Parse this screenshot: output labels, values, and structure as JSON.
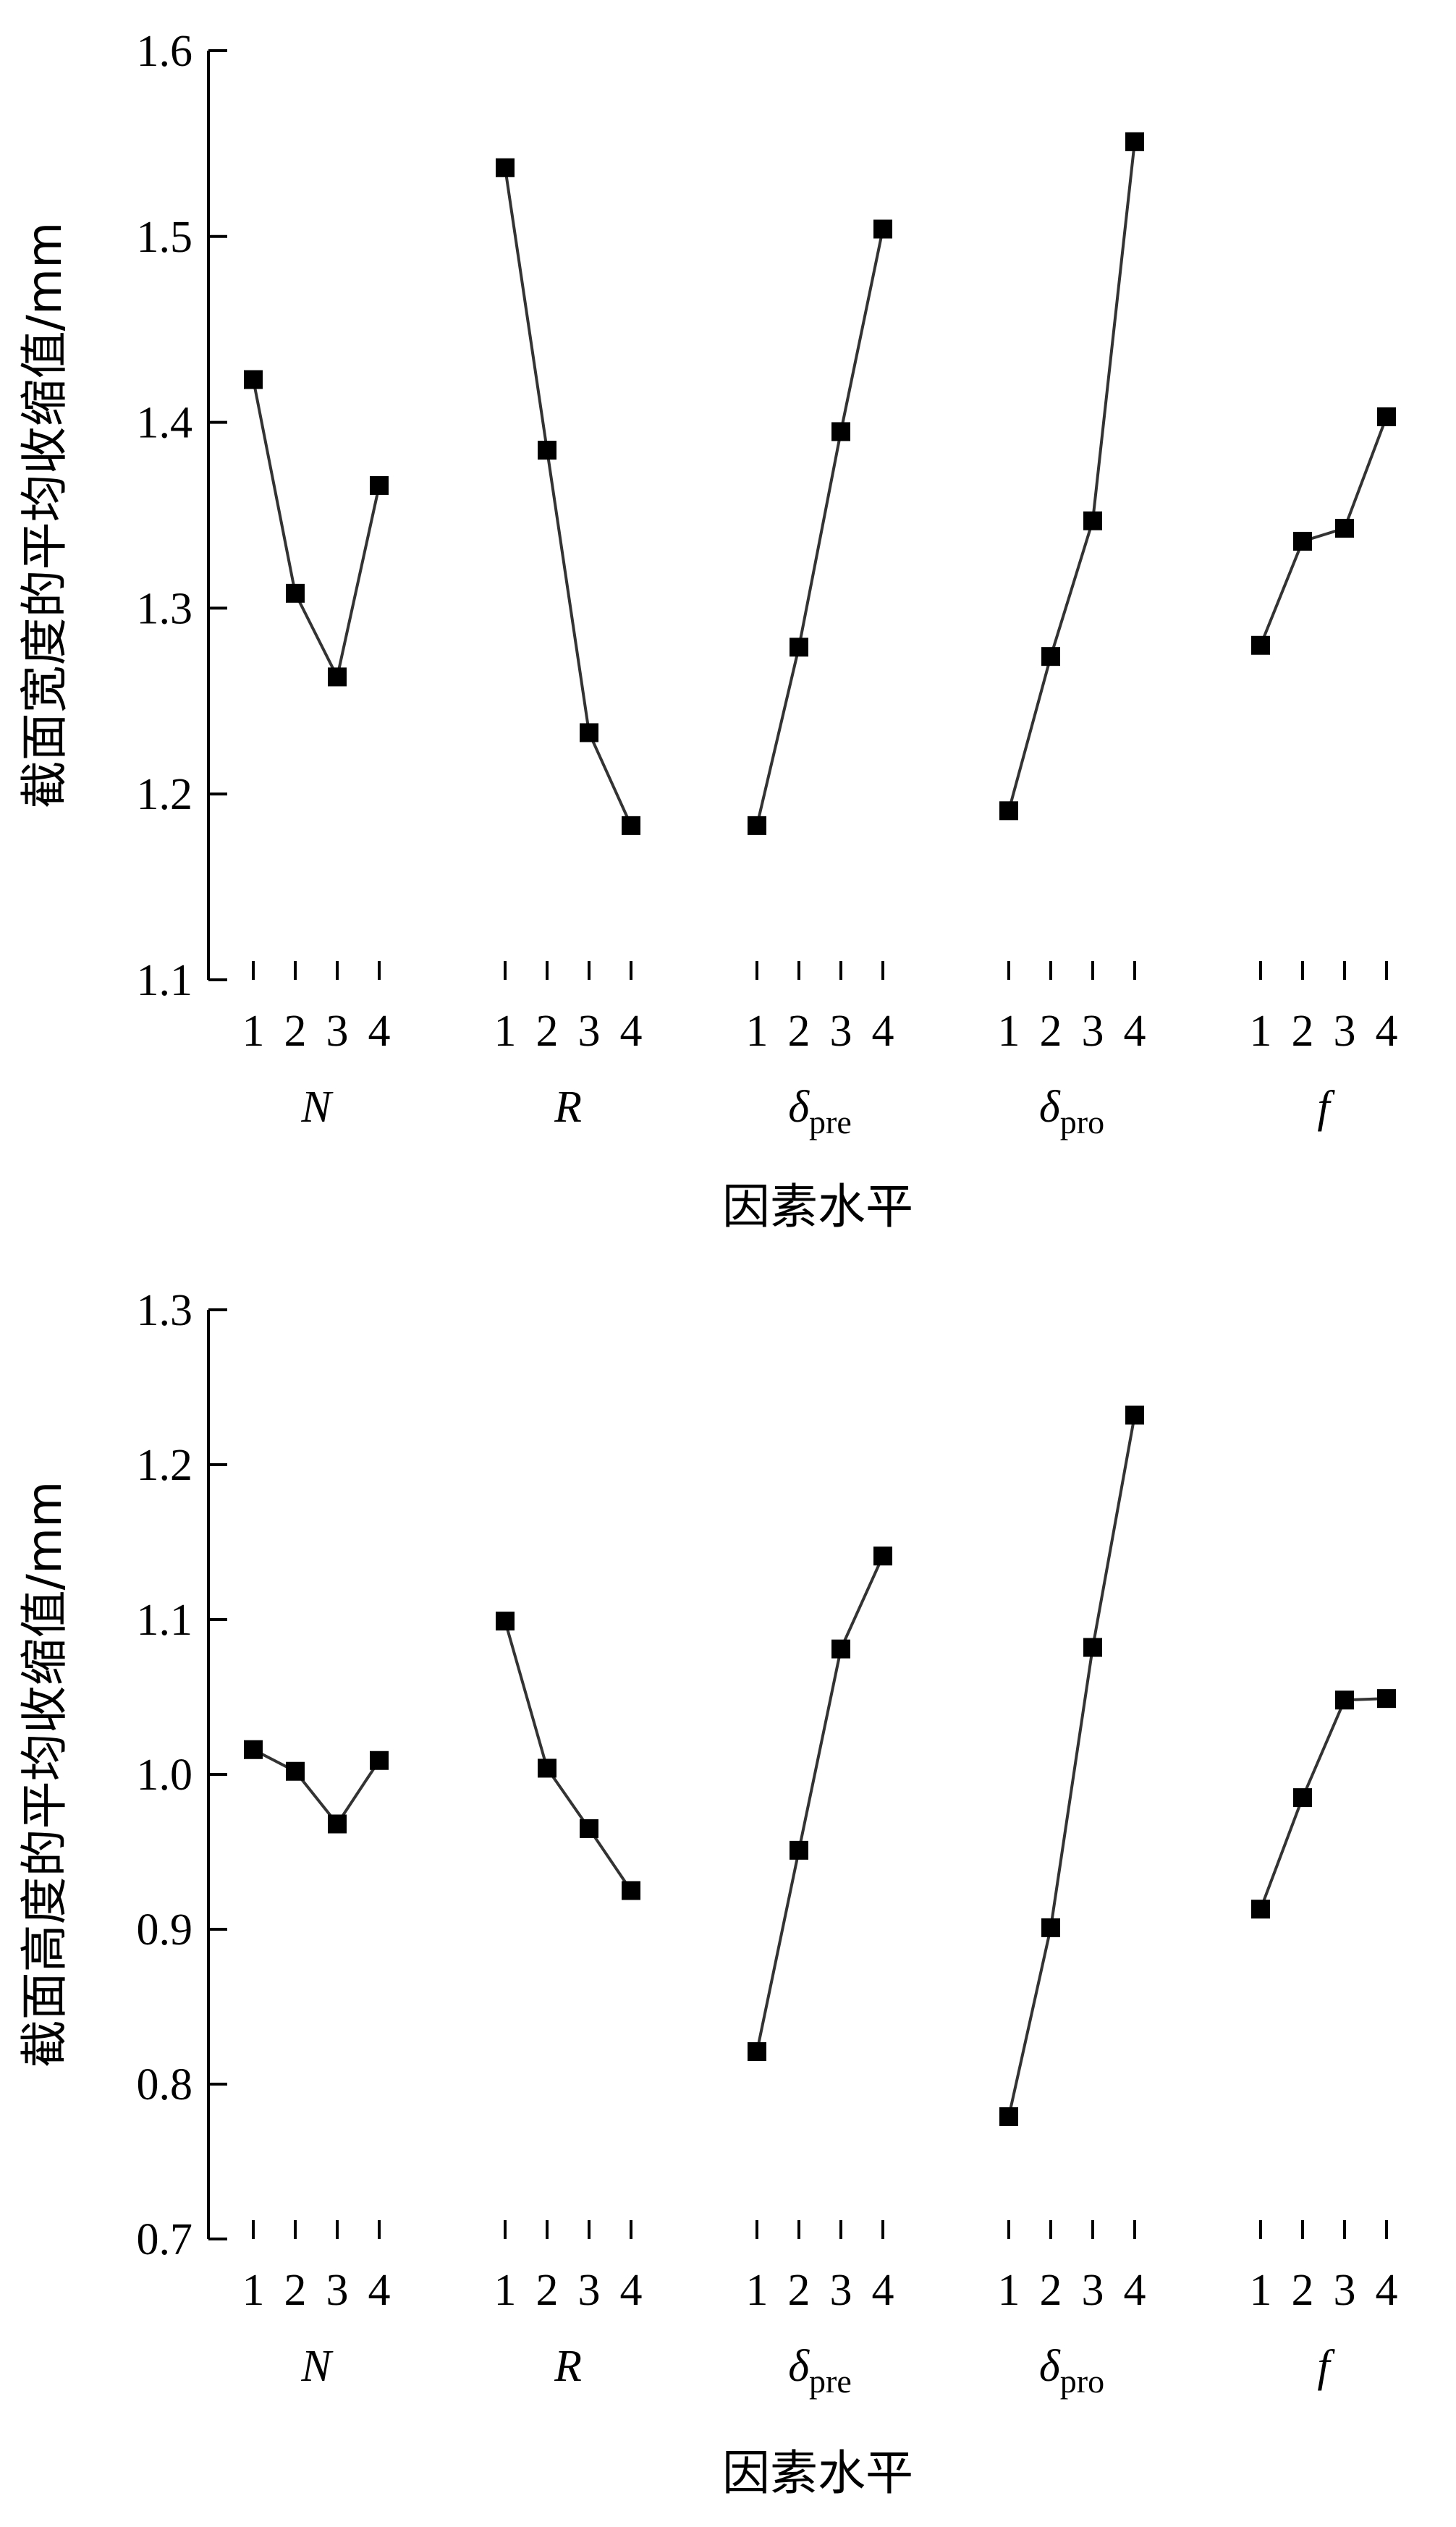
{
  "chart_data": [
    {
      "type": "line",
      "ylabel": "截面宽度的平均收缩值/mm",
      "xlabel": "因素水平",
      "ylim": [
        1.1,
        1.6
      ],
      "yticks": [
        "1.1",
        "1.2",
        "1.3",
        "1.4",
        "1.5",
        "1.6"
      ],
      "level_labels": [
        "1",
        "2",
        "3",
        "4"
      ],
      "groups": [
        {
          "label": "N",
          "sub": "",
          "values": [
            1.423,
            1.308,
            1.263,
            1.366
          ]
        },
        {
          "label": "R",
          "sub": "",
          "values": [
            1.537,
            1.385,
            1.233,
            1.183
          ]
        },
        {
          "label": "δ",
          "sub": "pre",
          "values": [
            1.183,
            1.279,
            1.395,
            1.504
          ]
        },
        {
          "label": "δ",
          "sub": "pro",
          "values": [
            1.191,
            1.274,
            1.347,
            1.551
          ]
        },
        {
          "label": "f",
          "sub": "",
          "values": [
            1.28,
            1.336,
            1.343,
            1.403
          ]
        }
      ]
    },
    {
      "type": "line",
      "ylabel": "截面高度的平均收缩值/mm",
      "xlabel": "因素水平",
      "ylim": [
        0.7,
        1.3
      ],
      "yticks": [
        "0.7",
        "0.8",
        "0.9",
        "1.0",
        "1.1",
        "1.2",
        "1.3"
      ],
      "level_labels": [
        "1",
        "2",
        "3",
        "4"
      ],
      "groups": [
        {
          "label": "N",
          "sub": "",
          "values": [
            1.016,
            1.002,
            0.968,
            1.009
          ]
        },
        {
          "label": "R",
          "sub": "",
          "values": [
            1.099,
            1.004,
            0.965,
            0.925
          ]
        },
        {
          "label": "δ",
          "sub": "pre",
          "values": [
            0.821,
            0.951,
            1.081,
            1.141
          ]
        },
        {
          "label": "δ",
          "sub": "pro",
          "values": [
            0.779,
            0.901,
            1.082,
            1.232
          ]
        },
        {
          "label": "f",
          "sub": "",
          "values": [
            0.913,
            0.985,
            1.048,
            1.049
          ]
        }
      ]
    }
  ]
}
